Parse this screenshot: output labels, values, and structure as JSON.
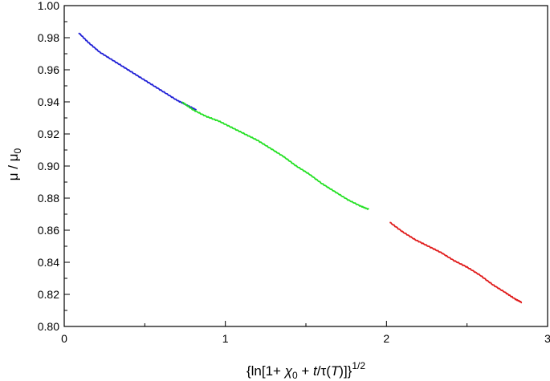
{
  "chart_data": {
    "type": "line",
    "title": "",
    "xlabel": {
      "prefix": "{ln[1+ ",
      "chi": "χ",
      "chi_sub": "0",
      "mid": " + ",
      "t": "t",
      "slash_tau": "/τ(",
      "T": "T",
      "close": ")]}",
      "sup": "1/2"
    },
    "ylabel": {
      "main": "μ / μ",
      "sub": "0"
    },
    "xlim": [
      0,
      3
    ],
    "ylim": [
      0.8,
      1.0
    ],
    "xticks": [
      0,
      1,
      2,
      3
    ],
    "xtick_labels": [
      "0",
      "1",
      "2",
      "3"
    ],
    "yticks": [
      0.8,
      0.82,
      0.84,
      0.86,
      0.88,
      0.9,
      0.92,
      0.94,
      0.96,
      0.98,
      1.0
    ],
    "ytick_labels": [
      "0.80",
      "0.82",
      "0.84",
      "0.86",
      "0.88",
      "0.90",
      "0.92",
      "0.94",
      "0.96",
      "0.98",
      "1.00"
    ],
    "grid": false,
    "series": [
      {
        "color": "#1f1fd6",
        "x": [
          0.09,
          0.15,
          0.22,
          0.3,
          0.38,
          0.46,
          0.54,
          0.62,
          0.7,
          0.76,
          0.82
        ],
        "y": [
          0.983,
          0.977,
          0.971,
          0.966,
          0.961,
          0.956,
          0.951,
          0.946,
          0.941,
          0.938,
          0.935
        ]
      },
      {
        "color": "#22e022",
        "x": [
          0.73,
          0.8,
          0.88,
          0.96,
          1.04,
          1.12,
          1.2,
          1.28,
          1.36,
          1.44,
          1.52,
          1.6,
          1.68,
          1.76,
          1.84,
          1.89
        ],
        "y": [
          0.94,
          0.935,
          0.931,
          0.928,
          0.924,
          0.92,
          0.916,
          0.911,
          0.906,
          0.9,
          0.895,
          0.889,
          0.884,
          0.879,
          0.875,
          0.873
        ]
      },
      {
        "color": "#e01a1a",
        "x": [
          2.02,
          2.1,
          2.18,
          2.26,
          2.34,
          2.42,
          2.5,
          2.58,
          2.66,
          2.74,
          2.8,
          2.84
        ],
        "y": [
          0.865,
          0.859,
          0.854,
          0.85,
          0.846,
          0.841,
          0.837,
          0.832,
          0.826,
          0.821,
          0.817,
          0.815
        ]
      }
    ]
  }
}
